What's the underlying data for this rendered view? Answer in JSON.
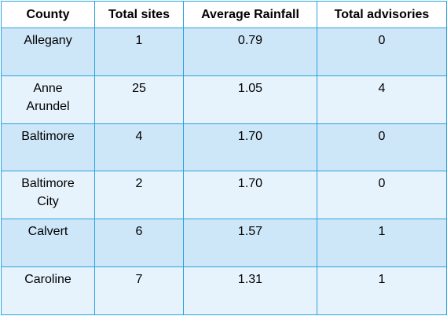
{
  "table": {
    "headers": [
      "County",
      "Total sites",
      "Average Rainfall",
      "Total advisories"
    ],
    "rows": [
      {
        "county": "Allegany",
        "total_sites": "1",
        "average_rainfall": "0.79",
        "total_advisories": "0"
      },
      {
        "county": "Anne Arundel",
        "total_sites": "25",
        "average_rainfall": "1.05",
        "total_advisories": "4"
      },
      {
        "county": "Baltimore",
        "total_sites": "4",
        "average_rainfall": "1.70",
        "total_advisories": "0"
      },
      {
        "county": "Baltimore City",
        "total_sites": "2",
        "average_rainfall": "1.70",
        "total_advisories": "0"
      },
      {
        "county": "Calvert",
        "total_sites": "6",
        "average_rainfall": "1.57",
        "total_advisories": "1"
      },
      {
        "county": "Caroline",
        "total_sites": "7",
        "average_rainfall": "1.31",
        "total_advisories": "1"
      }
    ]
  },
  "colors": {
    "border": "#2aa3e0",
    "row_dark": "#cde6f8",
    "row_light": "#e7f3fc",
    "header_bg": "#ffffff"
  }
}
